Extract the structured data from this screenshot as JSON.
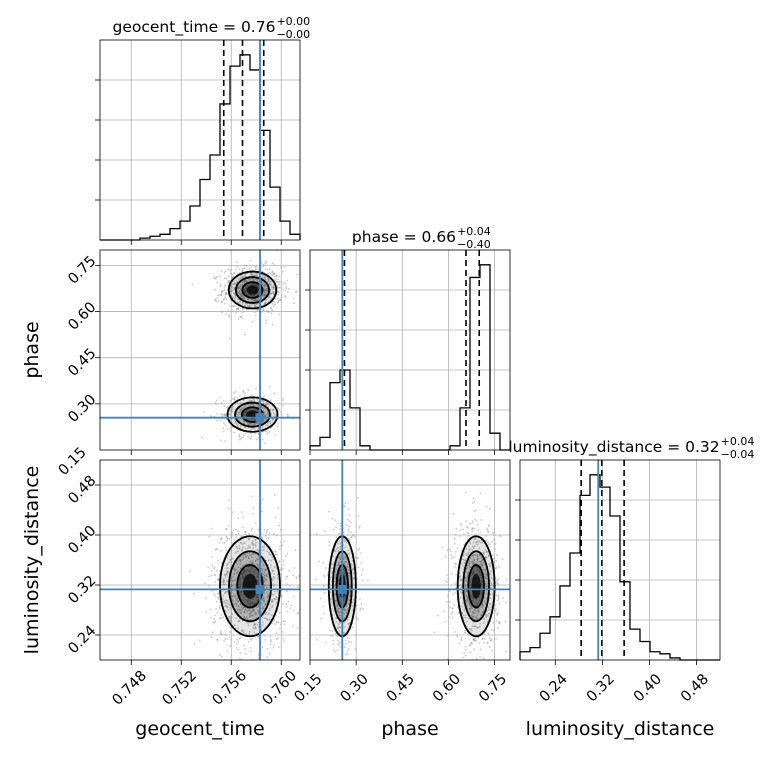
{
  "chart_data": {
    "type": "corner",
    "parameters": [
      "geocent_time",
      "phase",
      "luminosity_distance"
    ],
    "colors": {
      "truth": "#4682b4",
      "hist": "#000000",
      "quantile": "#000000",
      "grid": "#b0b0b0",
      "scatter": "#9a9a9a"
    },
    "grid": true,
    "diagonals": [
      {
        "parameter": "geocent_time",
        "title": "geocent_time = 0.76",
        "title_plus": "+0.00",
        "title_minus": "−0.00",
        "xlim": [
          0.7455,
          0.7615
        ],
        "ticks": [
          0.748,
          0.752,
          0.756,
          0.76
        ],
        "tick_labels": [
          "0.748",
          "0.752",
          "0.756",
          "0.760"
        ],
        "truth": 0.7583,
        "quantiles": [
          0.7554,
          0.7569,
          0.7586
        ],
        "bins": [
          0.7455,
          0.7463,
          0.7471,
          0.7479,
          0.7487,
          0.7495,
          0.7503,
          0.7511,
          0.7519,
          0.7527,
          0.7535,
          0.7543,
          0.7551,
          0.7559,
          0.7567,
          0.7575,
          0.7583,
          0.7591,
          0.7599,
          0.7607,
          0.7615
        ],
        "counts": [
          0,
          0,
          0,
          0,
          1,
          2,
          3,
          6,
          10,
          18,
          32,
          45,
          72,
          92,
          98,
          90,
          58,
          28,
          10,
          3
        ]
      },
      {
        "parameter": "phase",
        "title": "phase = 0.66",
        "title_plus": "+0.04",
        "title_minus": "−0.40",
        "xlim": [
          0.15,
          0.8
        ],
        "ticks": [
          0.15,
          0.3,
          0.45,
          0.6,
          0.75
        ],
        "tick_labels": [
          "0.15",
          "0.30",
          "0.45",
          "0.60",
          "0.75"
        ],
        "truth": 0.255,
        "quantiles": [
          0.262,
          0.657,
          0.7
        ],
        "bins": [
          0.15,
          0.1825,
          0.215,
          0.2475,
          0.28,
          0.3125,
          0.345,
          0.3775,
          0.41,
          0.4425,
          0.475,
          0.5075,
          0.54,
          0.5725,
          0.605,
          0.6375,
          0.67,
          0.7025,
          0.735,
          0.7675,
          0.8
        ],
        "counts": [
          2,
          6,
          32,
          38,
          20,
          2,
          0,
          0,
          0,
          0,
          0,
          0,
          0,
          0,
          2,
          20,
          82,
          88,
          8,
          0
        ]
      },
      {
        "parameter": "luminosity_distance",
        "title": "luminosity_distance = 0.32",
        "title_plus": "+0.04",
        "title_minus": "−0.04",
        "xlim": [
          0.18,
          0.52
        ],
        "ticks": [
          0.24,
          0.32,
          0.4,
          0.48
        ],
        "tick_labels": [
          "0.24",
          "0.32",
          "0.40",
          "0.48"
        ],
        "truth": 0.313,
        "quantiles": [
          0.284,
          0.319,
          0.357
        ],
        "bins": [
          0.18,
          0.197,
          0.214,
          0.231,
          0.248,
          0.265,
          0.282,
          0.299,
          0.316,
          0.333,
          0.35,
          0.367,
          0.384,
          0.401,
          0.418,
          0.435,
          0.452,
          0.469,
          0.486,
          0.503,
          0.52
        ],
        "counts": [
          4,
          6,
          13,
          21,
          36,
          52,
          80,
          90,
          84,
          70,
          38,
          15,
          9,
          4,
          3,
          1,
          0,
          0,
          0,
          0
        ]
      }
    ],
    "pairs": [
      {
        "x": "geocent_time",
        "y": "phase",
        "xlim": [
          0.7455,
          0.7615
        ],
        "ylim": [
          0.15,
          0.8
        ],
        "yticks": [
          0.3,
          0.45,
          0.6,
          0.75
        ],
        "ytick_labels": [
          "0.30",
          "0.45",
          "0.60",
          "0.75"
        ],
        "truth": [
          0.7583,
          0.255
        ],
        "modes": [
          {
            "cx": 0.7577,
            "cy": 0.67,
            "sx": 0.00095,
            "sy": 0.03,
            "n": 900
          },
          {
            "cx": 0.7577,
            "cy": 0.265,
            "sx": 0.001,
            "sy": 0.028,
            "n": 450
          }
        ]
      },
      {
        "x": "geocent_time",
        "y": "luminosity_distance",
        "xlim": [
          0.7455,
          0.7615
        ],
        "ylim": [
          0.2,
          0.52
        ],
        "yticks": [
          0.24,
          0.32,
          0.4,
          0.48
        ],
        "ytick_labels": [
          "0.24",
          "0.32",
          "0.40",
          "0.48"
        ],
        "truth": [
          0.7583,
          0.313
        ],
        "modes": [
          {
            "cx": 0.7575,
            "cy": 0.318,
            "sx": 0.0012,
            "sy": 0.04,
            "n": 1100
          }
        ]
      },
      {
        "x": "phase",
        "y": "luminosity_distance",
        "xlim": [
          0.15,
          0.8
        ],
        "ylim": [
          0.2,
          0.52
        ],
        "truth": [
          0.255,
          0.313
        ],
        "modes": [
          {
            "cx": 0.255,
            "cy": 0.318,
            "sx": 0.022,
            "sy": 0.04,
            "n": 500
          },
          {
            "cx": 0.69,
            "cy": 0.318,
            "sx": 0.03,
            "sy": 0.04,
            "n": 800
          }
        ]
      }
    ],
    "xlabels": [
      "geocent_time",
      "phase",
      "luminosity_distance"
    ],
    "ylabels": [
      "phase",
      "luminosity_distance"
    ],
    "extra_ytick_label": "0.15"
  }
}
